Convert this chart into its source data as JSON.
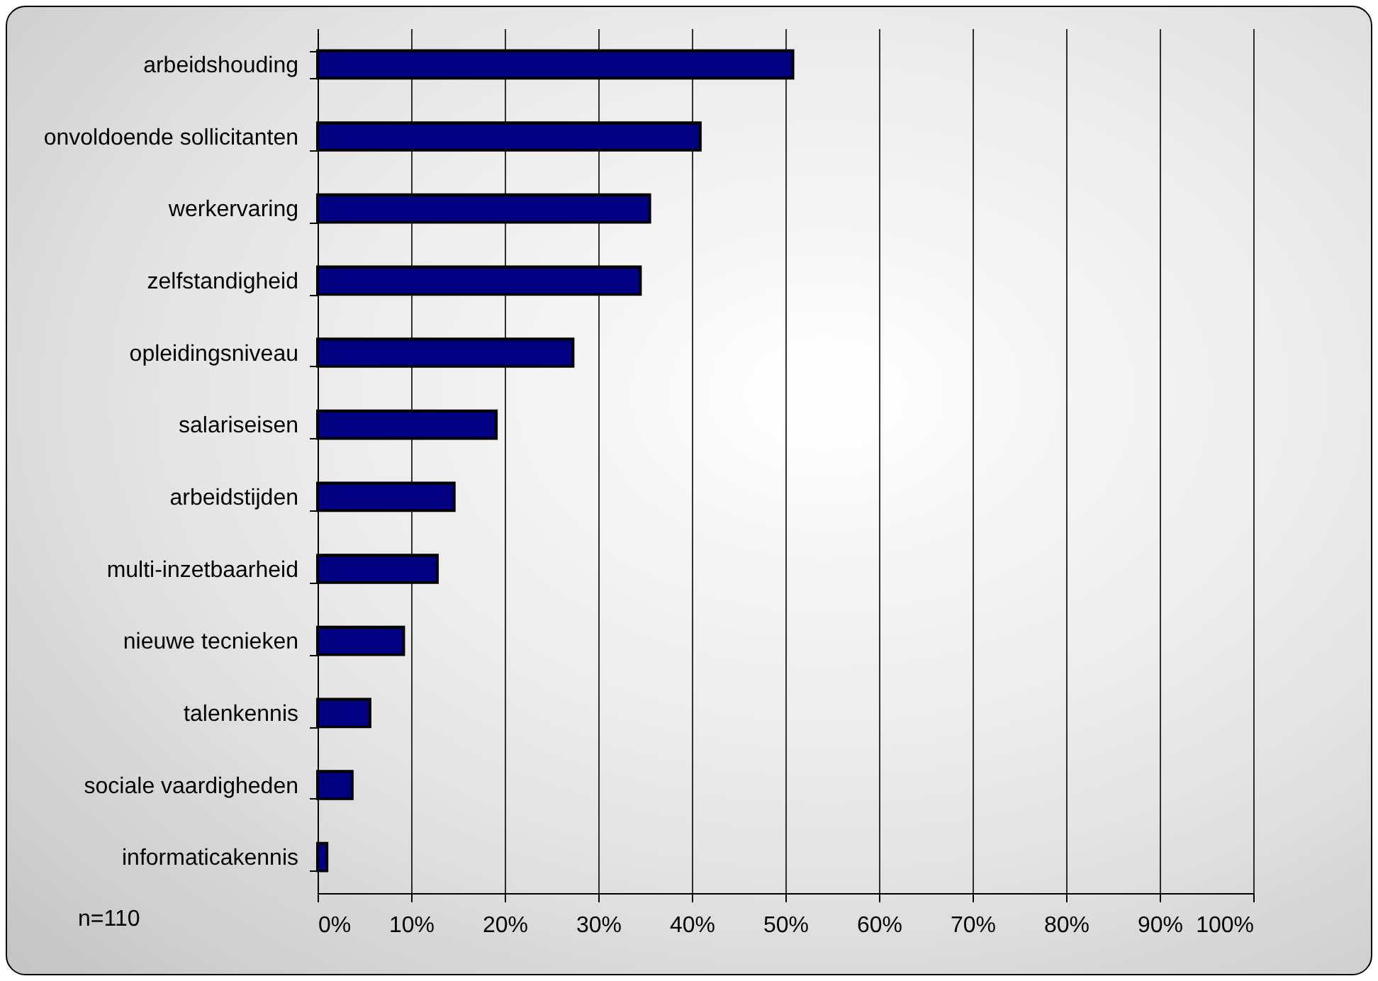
{
  "chart_data": {
    "type": "bar",
    "orientation": "horizontal",
    "categories": [
      "arbeidshouding",
      "onvoldoende sollicitanten",
      "werkervaring",
      "zelfstandigheid",
      "opleidingsniveau",
      "salariseisen",
      "arbeidstijden",
      "multi-inzetbaarheid",
      "nieuwe tecnieken",
      "talenkennis",
      "sociale vaardigheden",
      "informaticakennis"
    ],
    "values": [
      50.8,
      40.9,
      35.5,
      34.5,
      27.3,
      19.1,
      14.6,
      12.8,
      9.2,
      5.6,
      3.7,
      1.0
    ],
    "color": "#000080",
    "xlim": [
      0,
      100
    ],
    "xticks": [
      {
        "value": 0,
        "label": "0%"
      },
      {
        "value": 10,
        "label": "10%"
      },
      {
        "value": 20,
        "label": "20%"
      },
      {
        "value": 30,
        "label": "30%"
      },
      {
        "value": 40,
        "label": "40%"
      },
      {
        "value": 50,
        "label": "50%"
      },
      {
        "value": 60,
        "label": "60%"
      },
      {
        "value": 70,
        "label": "70%"
      },
      {
        "value": 80,
        "label": "80%"
      },
      {
        "value": 90,
        "label": "90%"
      },
      {
        "value": 100,
        "label": "100%"
      }
    ],
    "grid": "x",
    "annotations": [
      "n=110"
    ]
  }
}
